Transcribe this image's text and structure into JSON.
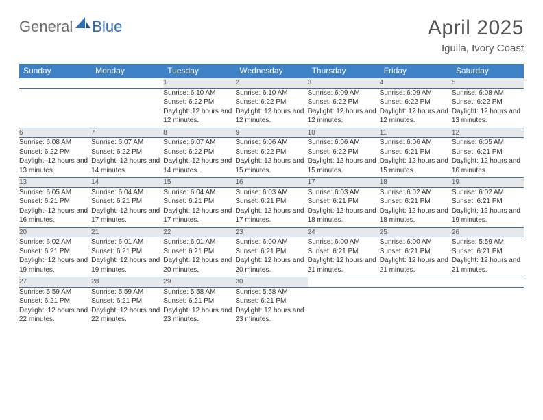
{
  "logo": {
    "general": "General",
    "blue": "Blue"
  },
  "title": "April 2025",
  "location": "Iguila, Ivory Coast",
  "colors": {
    "header_bg": "#3f81c5",
    "header_text": "#ffffff",
    "daynum_bg": "#e7e8e9",
    "border": "#3f6fa0",
    "logo_gray": "#6b6b6b",
    "logo_blue": "#2f6fb3"
  },
  "weekdays": [
    "Sunday",
    "Monday",
    "Tuesday",
    "Wednesday",
    "Thursday",
    "Friday",
    "Saturday"
  ],
  "weeks": [
    [
      null,
      null,
      {
        "n": "1",
        "sr": "6:10 AM",
        "ss": "6:22 PM",
        "dl": "12 hours and 12 minutes."
      },
      {
        "n": "2",
        "sr": "6:10 AM",
        "ss": "6:22 PM",
        "dl": "12 hours and 12 minutes."
      },
      {
        "n": "3",
        "sr": "6:09 AM",
        "ss": "6:22 PM",
        "dl": "12 hours and 12 minutes."
      },
      {
        "n": "4",
        "sr": "6:09 AM",
        "ss": "6:22 PM",
        "dl": "12 hours and 12 minutes."
      },
      {
        "n": "5",
        "sr": "6:08 AM",
        "ss": "6:22 PM",
        "dl": "12 hours and 13 minutes."
      }
    ],
    [
      {
        "n": "6",
        "sr": "6:08 AM",
        "ss": "6:22 PM",
        "dl": "12 hours and 13 minutes."
      },
      {
        "n": "7",
        "sr": "6:07 AM",
        "ss": "6:22 PM",
        "dl": "12 hours and 14 minutes."
      },
      {
        "n": "8",
        "sr": "6:07 AM",
        "ss": "6:22 PM",
        "dl": "12 hours and 14 minutes."
      },
      {
        "n": "9",
        "sr": "6:06 AM",
        "ss": "6:22 PM",
        "dl": "12 hours and 15 minutes."
      },
      {
        "n": "10",
        "sr": "6:06 AM",
        "ss": "6:22 PM",
        "dl": "12 hours and 15 minutes."
      },
      {
        "n": "11",
        "sr": "6:06 AM",
        "ss": "6:21 PM",
        "dl": "12 hours and 15 minutes."
      },
      {
        "n": "12",
        "sr": "6:05 AM",
        "ss": "6:21 PM",
        "dl": "12 hours and 16 minutes."
      }
    ],
    [
      {
        "n": "13",
        "sr": "6:05 AM",
        "ss": "6:21 PM",
        "dl": "12 hours and 16 minutes."
      },
      {
        "n": "14",
        "sr": "6:04 AM",
        "ss": "6:21 PM",
        "dl": "12 hours and 17 minutes."
      },
      {
        "n": "15",
        "sr": "6:04 AM",
        "ss": "6:21 PM",
        "dl": "12 hours and 17 minutes."
      },
      {
        "n": "16",
        "sr": "6:03 AM",
        "ss": "6:21 PM",
        "dl": "12 hours and 17 minutes."
      },
      {
        "n": "17",
        "sr": "6:03 AM",
        "ss": "6:21 PM",
        "dl": "12 hours and 18 minutes."
      },
      {
        "n": "18",
        "sr": "6:02 AM",
        "ss": "6:21 PM",
        "dl": "12 hours and 18 minutes."
      },
      {
        "n": "19",
        "sr": "6:02 AM",
        "ss": "6:21 PM",
        "dl": "12 hours and 19 minutes."
      }
    ],
    [
      {
        "n": "20",
        "sr": "6:02 AM",
        "ss": "6:21 PM",
        "dl": "12 hours and 19 minutes."
      },
      {
        "n": "21",
        "sr": "6:01 AM",
        "ss": "6:21 PM",
        "dl": "12 hours and 19 minutes."
      },
      {
        "n": "22",
        "sr": "6:01 AM",
        "ss": "6:21 PM",
        "dl": "12 hours and 20 minutes."
      },
      {
        "n": "23",
        "sr": "6:00 AM",
        "ss": "6:21 PM",
        "dl": "12 hours and 20 minutes."
      },
      {
        "n": "24",
        "sr": "6:00 AM",
        "ss": "6:21 PM",
        "dl": "12 hours and 21 minutes."
      },
      {
        "n": "25",
        "sr": "6:00 AM",
        "ss": "6:21 PM",
        "dl": "12 hours and 21 minutes."
      },
      {
        "n": "26",
        "sr": "5:59 AM",
        "ss": "6:21 PM",
        "dl": "12 hours and 21 minutes."
      }
    ],
    [
      {
        "n": "27",
        "sr": "5:59 AM",
        "ss": "6:21 PM",
        "dl": "12 hours and 22 minutes."
      },
      {
        "n": "28",
        "sr": "5:59 AM",
        "ss": "6:21 PM",
        "dl": "12 hours and 22 minutes."
      },
      {
        "n": "29",
        "sr": "5:58 AM",
        "ss": "6:21 PM",
        "dl": "12 hours and 23 minutes."
      },
      {
        "n": "30",
        "sr": "5:58 AM",
        "ss": "6:21 PM",
        "dl": "12 hours and 23 minutes."
      },
      null,
      null,
      null
    ]
  ],
  "labels": {
    "sunrise": "Sunrise:",
    "sunset": "Sunset:",
    "daylight": "Daylight:"
  }
}
